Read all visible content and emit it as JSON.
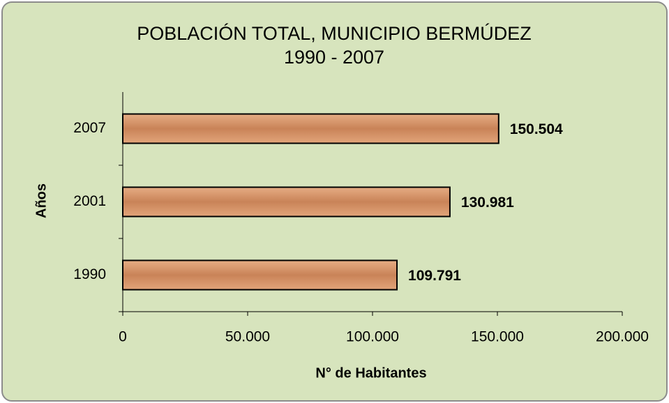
{
  "chart_data": {
    "type": "bar",
    "orientation": "horizontal",
    "title": "POBLACIÓN TOTAL, MUNICIPIO BERMÚDEZ",
    "subtitle": "1990 - 2007",
    "x_label": "N° de Habitantes",
    "y_label": "Años",
    "categories": [
      "1990",
      "2001",
      "2007"
    ],
    "values": [
      109791,
      130981,
      150504
    ],
    "value_labels": [
      "109.791",
      "130.981",
      "150.504"
    ],
    "color": "#d9976b",
    "xlim": [
      0,
      200000
    ],
    "xticks": [
      0,
      {
        "value": 50000,
        "label": "50.000"
      },
      {
        "value": 100000,
        "label": "100.000"
      },
      {
        "value": 150000,
        "label": "150.000"
      },
      {
        "value": 200000,
        "label": "200.000"
      }
    ],
    "grid": false
  }
}
